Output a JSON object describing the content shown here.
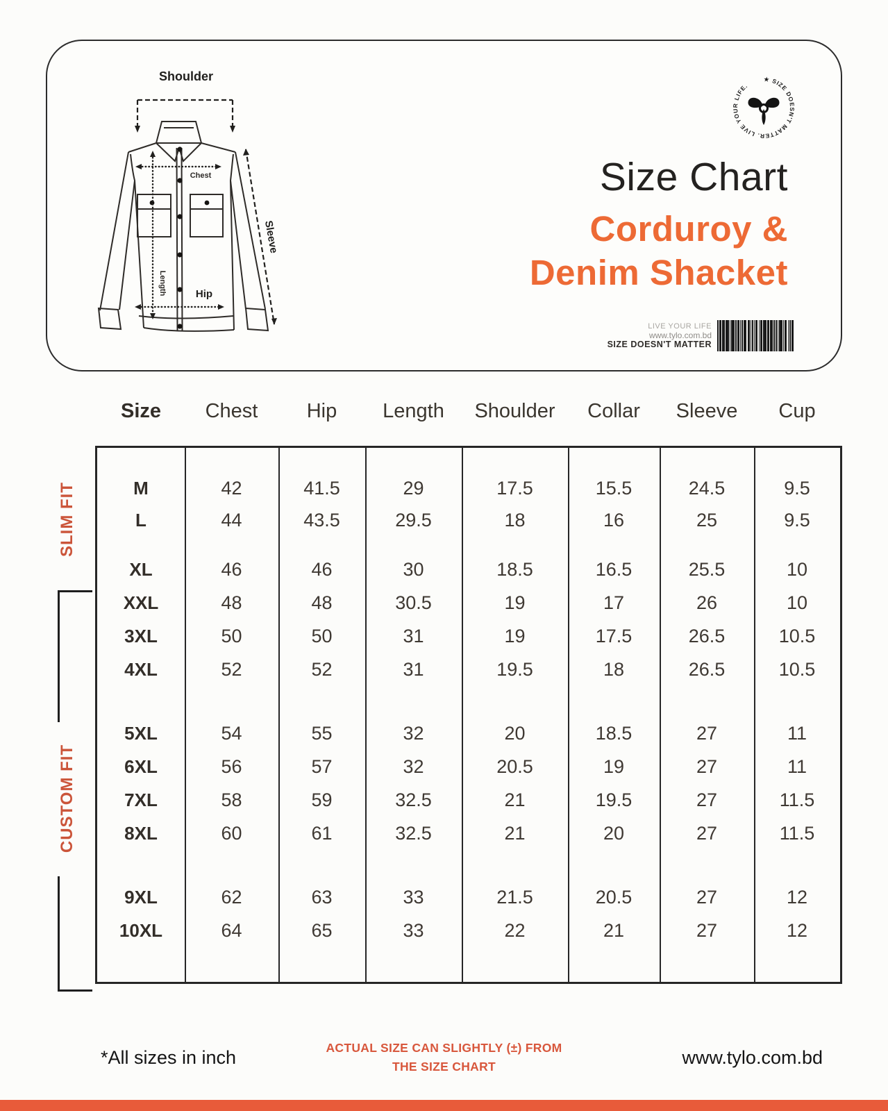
{
  "page": {
    "accent_orange": "#ED6A35",
    "muted_orange": "#CB5439",
    "bottom_bar_color": "#E85B3A"
  },
  "card": {
    "title": "Size Chart",
    "product_line1": "Corduroy &",
    "product_line2": "Denim Shacket",
    "diagram_labels": {
      "shoulder": "Shoulder",
      "chest": "Chest",
      "length": "Length",
      "hip": "Hip",
      "sleeve": "Sleeve"
    },
    "logo": {
      "circle_text": "★ SIZE DOESN'T MATTER. LIVE YOUR LIFE."
    },
    "barcode_caption": {
      "line1": "LIVE YOUR LIFE",
      "line2": "www.tylo.com.bd",
      "line3": "SIZE DOESN'T MATTER"
    }
  },
  "table": {
    "columns": [
      "Size",
      "Chest",
      "Hip",
      "Length",
      "Shoulder",
      "Collar",
      "Sleeve",
      "Cup"
    ],
    "fit_labels": [
      "SLIM FIT",
      "CUSTOM FIT"
    ],
    "groups": [
      {
        "rows": [
          {
            "size": "M",
            "values": [
              42,
              41.5,
              29,
              17.5,
              15.5,
              24.5,
              9.5
            ]
          },
          {
            "size": "L",
            "values": [
              44,
              43.5,
              29.5,
              18,
              16,
              25,
              9.5
            ]
          }
        ]
      },
      {
        "rows": [
          {
            "size": "XL",
            "values": [
              46,
              46,
              30,
              18.5,
              16.5,
              25.5,
              10
            ]
          },
          {
            "size": "XXL",
            "values": [
              48,
              48,
              30.5,
              19,
              17,
              26,
              10
            ]
          },
          {
            "size": "3XL",
            "values": [
              50,
              50,
              31,
              19,
              17.5,
              26.5,
              10.5
            ]
          },
          {
            "size": "4XL",
            "values": [
              52,
              52,
              31,
              19.5,
              18,
              26.5,
              10.5
            ]
          }
        ]
      },
      {
        "rows": [
          {
            "size": "5XL",
            "values": [
              54,
              55,
              32,
              20,
              18.5,
              27,
              11
            ]
          },
          {
            "size": "6XL",
            "values": [
              56,
              57,
              32,
              20.5,
              19,
              27,
              11
            ]
          },
          {
            "size": "7XL",
            "values": [
              58,
              59,
              32.5,
              21,
              19.5,
              27,
              11.5
            ]
          },
          {
            "size": "8XL",
            "values": [
              60,
              61,
              32.5,
              21,
              20,
              27,
              11.5
            ]
          }
        ]
      },
      {
        "rows": [
          {
            "size": "9XL",
            "values": [
              62,
              63,
              33,
              21.5,
              20.5,
              27,
              12
            ]
          },
          {
            "size": "10XL",
            "values": [
              64,
              65,
              33,
              22,
              21,
              27,
              12
            ]
          }
        ]
      }
    ]
  },
  "footer": {
    "note": "*All sizes in inch",
    "disclaimer_line1": "ACTUAL SIZE CAN  SLIGHTLY (±) FROM",
    "disclaimer_line2": "THE SIZE CHART",
    "website": "www.tylo.com.bd"
  }
}
